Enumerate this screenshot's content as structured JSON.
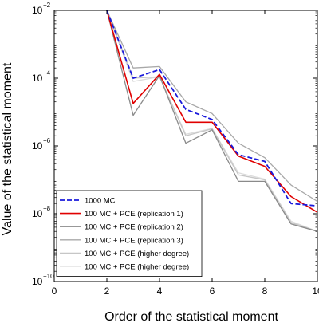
{
  "chart_data": {
    "type": "line",
    "xlabel": "Order of the statistical moment",
    "ylabel": "Value of the statistical moment",
    "xlim": [
      0,
      10
    ],
    "ylim_log10": [
      -10,
      -2
    ],
    "yscale": "log",
    "x_ticks": [
      0,
      2,
      4,
      6,
      8,
      10
    ],
    "x_tick_labels": [
      "0",
      "2",
      "4",
      "6",
      "8",
      "10"
    ],
    "y_ticks_log10": [
      -10,
      -8,
      -6,
      -4,
      -2
    ],
    "y_tick_labels": [
      {
        "base": "10",
        "exp": "−10"
      },
      {
        "base": "10",
        "exp": "−8"
      },
      {
        "base": "10",
        "exp": "−6"
      },
      {
        "base": "10",
        "exp": "−4"
      },
      {
        "base": "10",
        "exp": "−2"
      }
    ],
    "grid": false,
    "legend_position": "bottom-left",
    "x": [
      2,
      3,
      4,
      5,
      6,
      7,
      8,
      9,
      10
    ],
    "series": [
      {
        "name": "100 MC + PCE (higher degree)",
        "color": "#dcdcdc",
        "width": 1.3,
        "dash": "",
        "y": [
          0.01,
          8e-05,
          0.00011,
          2.2e-06,
          3.3e-06,
          1.6e-07,
          1.05e-07,
          6e-09,
          3e-09
        ]
      },
      {
        "name": "100 MC + PCE (higher degree)",
        "color": "#c6c6c6",
        "width": 1.3,
        "dash": "",
        "y": [
          0.01,
          0.0001,
          0.00011,
          2e-06,
          3.2e-06,
          1.4e-07,
          1e-07,
          5.5e-09,
          3e-09
        ]
      },
      {
        "name": "100 MC + PCE (replication 3)",
        "color": "#a8a8a8",
        "width": 1.3,
        "dash": "",
        "y": [
          0.01,
          0.0002,
          0.00022,
          2e-05,
          9e-06,
          1.2e-06,
          4.5e-07,
          7e-08,
          2.3e-08
        ]
      },
      {
        "name": "100 MC + PCE (replication 2)",
        "color": "#8a8a8a",
        "width": 1.3,
        "dash": "",
        "y": [
          0.01,
          8e-06,
          0.00012,
          1.2e-06,
          3e-06,
          9e-08,
          9e-08,
          5e-09,
          3e-09
        ]
      },
      {
        "name": "100 MC + PCE (replication 1)",
        "color": "#e00000",
        "width": 1.6,
        "dash": "",
        "y": [
          0.01,
          1.8e-05,
          0.00013,
          5e-06,
          5e-06,
          5e-07,
          2.5e-07,
          3.2e-08,
          1.1e-08
        ]
      },
      {
        "name": "1000 MC",
        "color": "#1a1adb",
        "width": 1.8,
        "dash": "6,3",
        "y": [
          0.01,
          0.0001,
          0.00018,
          1.2e-05,
          6e-06,
          5.5e-07,
          3.5e-07,
          2e-08,
          1.7e-08
        ]
      }
    ],
    "legend_order": [
      5,
      4,
      3,
      2,
      1,
      0
    ]
  }
}
